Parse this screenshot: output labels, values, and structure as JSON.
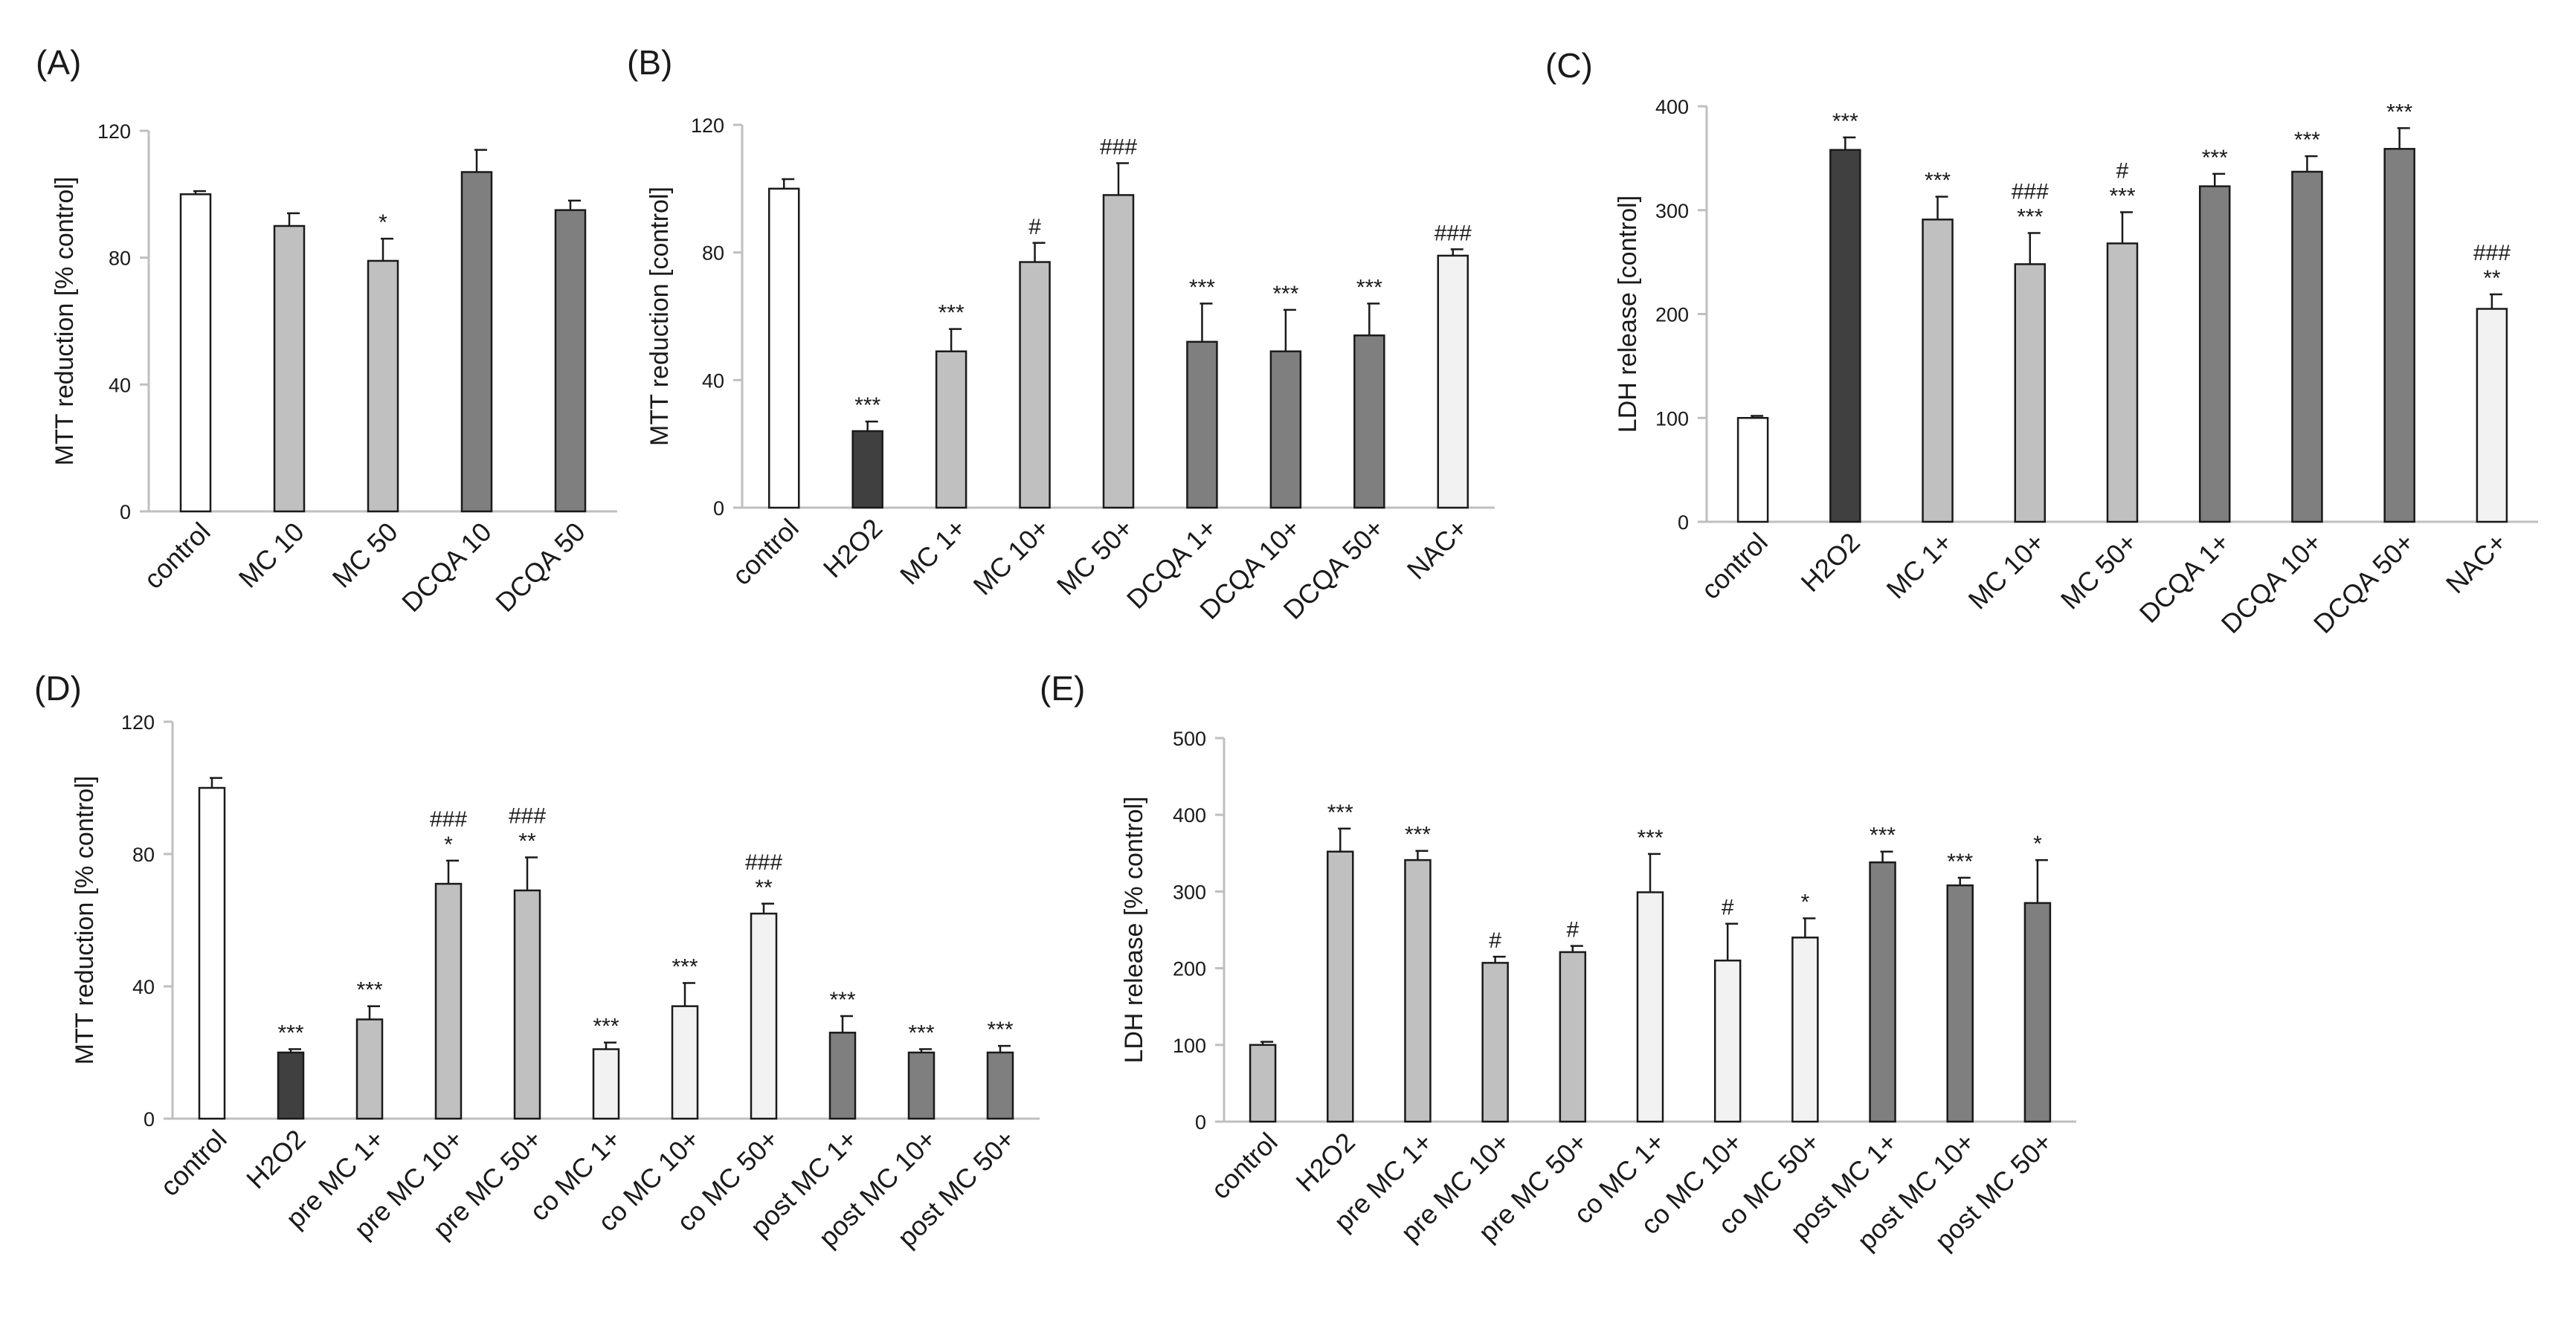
{
  "colors": {
    "white": "#ffffff",
    "dark": "#404040",
    "light": "#c0c0c0",
    "medium": "#7f7f7f",
    "pale": "#f2f2f2",
    "axis": "#bfbfbf",
    "outline": "#1a1a1a"
  },
  "chart_data": [
    {
      "panel": "(A)",
      "type": "bar",
      "title": "",
      "xlabel": "",
      "ylabel": "MTT reduction [% control]",
      "ylim": [
        0,
        120
      ],
      "yticks": [
        0,
        40,
        80,
        120
      ],
      "categories": [
        "control",
        "MC 10",
        "MC 50",
        "DCQA 10",
        "DCQA 50"
      ],
      "values": [
        100,
        90,
        79,
        107,
        95
      ],
      "errors": [
        1,
        4,
        7,
        7,
        3
      ],
      "fills": [
        "white",
        "light",
        "light",
        "medium",
        "medium"
      ],
      "annotations": [
        [],
        [],
        [
          "*"
        ],
        [],
        []
      ]
    },
    {
      "panel": "(B)",
      "type": "bar",
      "title": "",
      "xlabel": "",
      "ylabel": "MTT reduction [control]",
      "ylim": [
        0,
        120
      ],
      "yticks": [
        0,
        40,
        80,
        120
      ],
      "categories": [
        "control",
        "H2O2",
        "MC 1+",
        "MC 10+",
        "MC 50+",
        "DCQA 1+",
        "DCQA 10+",
        "DCQA 50+",
        "NAC+"
      ],
      "values": [
        100,
        24,
        49,
        77,
        98,
        52,
        49,
        54,
        79
      ],
      "errors": [
        3,
        3,
        7,
        6,
        10,
        12,
        13,
        10,
        2
      ],
      "fills": [
        "white",
        "dark",
        "light",
        "light",
        "light",
        "medium",
        "medium",
        "medium",
        "pale"
      ],
      "annotations": [
        [],
        [
          "***"
        ],
        [
          "***"
        ],
        [
          "#"
        ],
        [
          "###"
        ],
        [
          "***"
        ],
        [
          "***"
        ],
        [
          "***"
        ],
        [
          "###"
        ]
      ]
    },
    {
      "panel": "(C)",
      "type": "bar",
      "title": "",
      "xlabel": "",
      "ylabel": "LDH release [control]",
      "ylim": [
        0,
        400
      ],
      "yticks": [
        0,
        100,
        200,
        300,
        400
      ],
      "categories": [
        "control",
        "H2O2",
        "MC 1+",
        "MC 10+",
        "MC 50+",
        "DCQA 1+",
        "DCQA 10+",
        "DCQA 50+",
        "NAC+"
      ],
      "values": [
        100,
        358,
        291,
        248,
        268,
        323,
        337,
        359,
        205
      ],
      "errors": [
        2,
        12,
        22,
        30,
        30,
        12,
        15,
        20,
        14
      ],
      "fills": [
        "white",
        "dark",
        "light",
        "light",
        "light",
        "medium",
        "medium",
        "medium",
        "pale"
      ],
      "annotations": [
        [],
        [
          "***"
        ],
        [
          "***"
        ],
        [
          "***",
          "###"
        ],
        [
          "***",
          "#"
        ],
        [
          "***"
        ],
        [
          "***"
        ],
        [
          "***"
        ],
        [
          "**",
          "###"
        ]
      ]
    },
    {
      "panel": "(D)",
      "type": "bar",
      "title": "",
      "xlabel": "",
      "ylabel": "MTT reduction [% control]",
      "ylim": [
        0,
        120
      ],
      "yticks": [
        0,
        40,
        80,
        120
      ],
      "categories": [
        "control",
        "H2O2",
        "pre MC 1+",
        "pre MC 10+",
        "pre MC 50+",
        "co MC 1+",
        "co MC 10+",
        "co MC 50+",
        "post MC 1+",
        "post MC 10+",
        "post MC 50+"
      ],
      "values": [
        100,
        20,
        30,
        71,
        69,
        21,
        34,
        62,
        26,
        20,
        20
      ],
      "errors": [
        3,
        1,
        4,
        7,
        10,
        2,
        7,
        3,
        5,
        1,
        2
      ],
      "fills": [
        "white",
        "dark",
        "light",
        "light",
        "light",
        "pale",
        "pale",
        "pale",
        "medium",
        "medium",
        "medium"
      ],
      "annotations": [
        [],
        [
          "***"
        ],
        [
          "***"
        ],
        [
          "*",
          "###"
        ],
        [
          "**",
          "###"
        ],
        [
          "***"
        ],
        [
          "***"
        ],
        [
          "**",
          "###"
        ],
        [
          "***"
        ],
        [
          "***"
        ],
        [
          "***"
        ]
      ]
    },
    {
      "panel": "(E)",
      "type": "bar",
      "title": "",
      "xlabel": "",
      "ylabel": "LDH release [% control]",
      "ylim": [
        0,
        500
      ],
      "yticks": [
        0,
        100,
        200,
        300,
        400,
        500
      ],
      "categories": [
        "control",
        "H2O2",
        "pre MC 1+",
        "pre MC 10+",
        "pre MC 50+",
        "co MC 1+",
        "co MC 10+",
        "co MC 50+",
        "post MC 1+",
        "post MC 10+",
        "post MC 50+"
      ],
      "values": [
        100,
        352,
        341,
        207,
        221,
        299,
        210,
        240,
        338,
        308,
        285
      ],
      "errors": [
        4,
        30,
        12,
        8,
        8,
        50,
        48,
        25,
        14,
        10,
        56
      ],
      "fills": [
        "light",
        "light",
        "light",
        "light",
        "light",
        "pale",
        "pale",
        "pale",
        "medium",
        "medium",
        "medium"
      ],
      "annotations": [
        [],
        [
          "***"
        ],
        [
          "***"
        ],
        [
          "#"
        ],
        [
          "#"
        ],
        [
          "***"
        ],
        [
          "#"
        ],
        [
          "*"
        ],
        [
          "***"
        ],
        [
          "***"
        ],
        [
          "*"
        ]
      ]
    }
  ]
}
